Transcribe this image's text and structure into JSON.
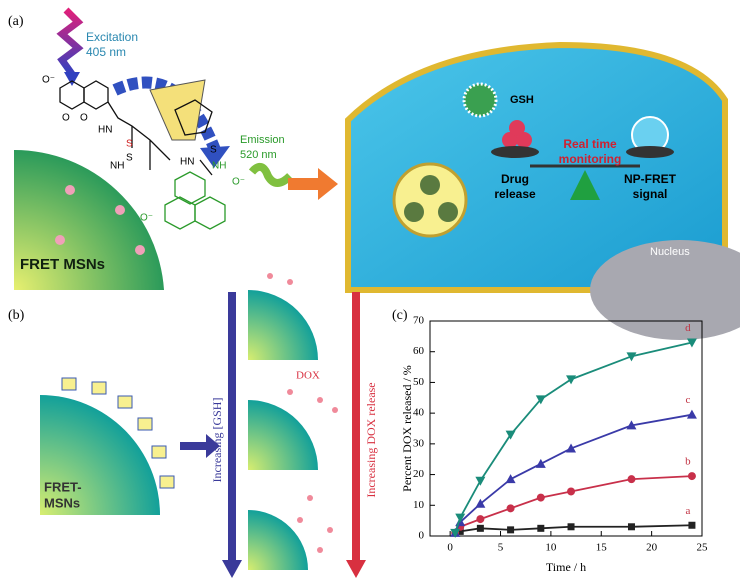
{
  "panel_labels": [
    "(a)",
    "(b)",
    "(c)"
  ],
  "panel_a": {
    "excitation": "Excitation",
    "excitation_nm": "405 nm",
    "emission": "Emission",
    "emission_nm": "520 nm",
    "particle": "FRET MSNs",
    "gsh": "GSH",
    "monitoring_1": "Real time",
    "monitoring_2": "monitoring",
    "drug_1": "Drug",
    "drug_2": "release",
    "signal_1": "NP-FRET",
    "signal_2": "signal",
    "nucleus": "Nucleus",
    "atoms": [
      "O⁻",
      "O",
      "O",
      "HN",
      "NH",
      "S",
      "S",
      "HN",
      "S",
      "NH",
      "O⁻",
      "O⁻"
    ]
  },
  "panel_b": {
    "particle_1": "FRET-",
    "particle_2": "MSNs",
    "gsh_arrow": "Increasing [GSH]",
    "dox_arrow": "Increasing DOX release",
    "dox": "DOX"
  },
  "chart_data": {
    "type": "line",
    "xlabel": "Time / h",
    "ylabel": "Percent DOX released / %",
    "x": [
      0.5,
      1,
      3,
      6,
      9,
      12,
      18,
      24
    ],
    "series": [
      {
        "name": "a",
        "color": "#222222",
        "marker": "square",
        "values": [
          1,
          1.5,
          2.5,
          2,
          2.5,
          3,
          3,
          3.5
        ]
      },
      {
        "name": "b",
        "color": "#c8304a",
        "marker": "circle",
        "values": [
          1,
          3,
          5.5,
          9,
          12.5,
          14.5,
          18.5,
          19.5
        ]
      },
      {
        "name": "c",
        "color": "#3a3aa8",
        "marker": "triangle-up",
        "values": [
          1,
          4.5,
          10.5,
          18.5,
          23.5,
          28.5,
          36,
          39.5
        ]
      },
      {
        "name": "d",
        "color": "#1a8c7a",
        "marker": "triangle-down",
        "values": [
          1,
          6,
          18,
          33,
          44.5,
          51,
          58.5,
          63
        ]
      }
    ],
    "xlim": [
      -2,
      25
    ],
    "xticks": [
      0,
      5,
      10,
      15,
      20,
      25
    ],
    "ylim": [
      0,
      70
    ],
    "yticks": [
      0,
      10,
      20,
      30,
      40,
      50,
      60,
      70
    ]
  }
}
